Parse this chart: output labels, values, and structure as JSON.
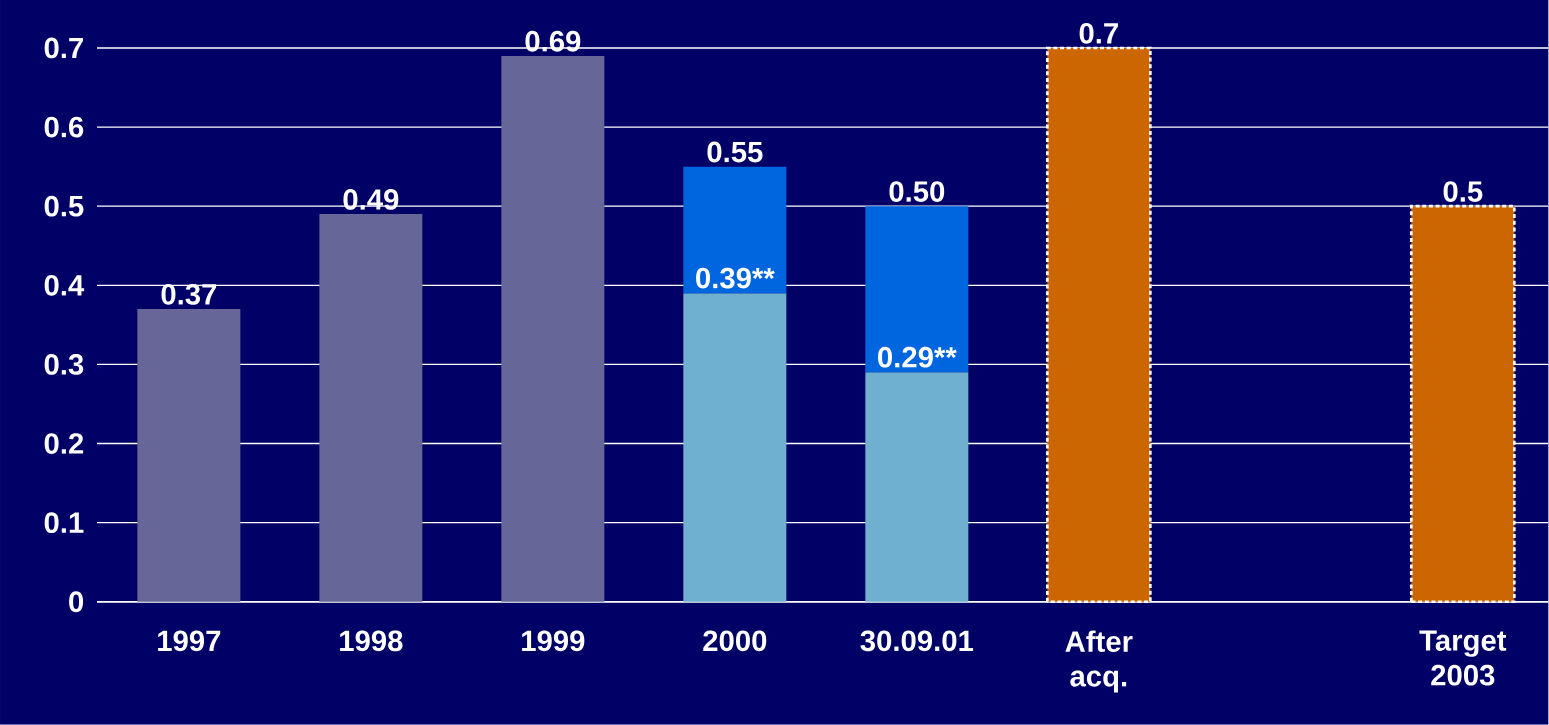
{
  "chart_data": {
    "type": "bar",
    "stacked": true,
    "categories": [
      "1997",
      "1998",
      "1999",
      "2000",
      "30.09.01",
      "After acq.",
      null,
      "Target 2003"
    ],
    "series": [
      {
        "colors": [
          "#666699",
          "#666699",
          "#666699",
          "#6fafd0",
          "#6fafd0",
          null,
          null,
          null
        ],
        "values": [
          0.37,
          0.49,
          0.69,
          0.39,
          0.29,
          null,
          null,
          null
        ],
        "value_labels": [
          null,
          null,
          null,
          "0.39**",
          "0.29**",
          null,
          null,
          null
        ]
      },
      {
        "color": "#0066e0",
        "values": [
          null,
          null,
          null,
          0.16,
          0.21,
          null,
          null,
          null
        ]
      },
      {
        "color": "#cc6600",
        "line_style": "dashed",
        "values": [
          null,
          null,
          null,
          null,
          null,
          0.7,
          null,
          0.5
        ]
      }
    ],
    "totals": [
      "0.37",
      "0.49",
      "0.69",
      "0.55",
      "0.50",
      "0.7",
      null,
      "0.5"
    ],
    "ylim": [
      0,
      0.7
    ],
    "yticks": [
      0,
      0.1,
      0.2,
      0.3,
      0.4,
      0.5,
      0.6,
      0.7
    ],
    "grid": "y"
  }
}
